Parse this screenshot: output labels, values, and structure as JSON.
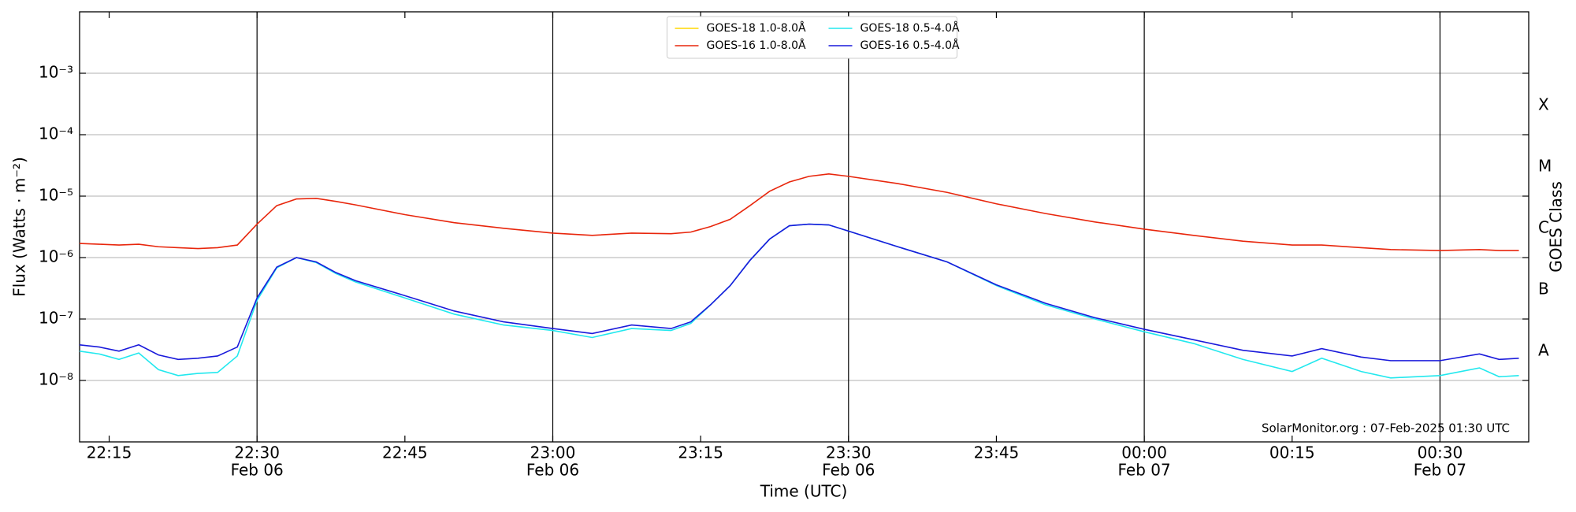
{
  "chart_data": {
    "type": "line",
    "xlabel": "Time (UTC)",
    "ylabel": "Flux (Watts · m⁻²)",
    "y2label": "GOES Class",
    "annotation": "SolarMonitor.org : 07-Feb-2025 01:30 UTC",
    "log_y": true,
    "grid": true,
    "legend": "upper center",
    "xlim": [
      "Feb 06 22:12",
      "Feb 07 00:39"
    ],
    "ylim": [
      1e-09,
      0.01
    ],
    "xticks": [
      {
        "value": "Feb 06 22:15",
        "label": [
          "22:15"
        ]
      },
      {
        "value": "Feb 06 22:30",
        "label": [
          "22:30",
          "Feb 06"
        ]
      },
      {
        "value": "Feb 06 22:45",
        "label": [
          "22:45"
        ]
      },
      {
        "value": "Feb 06 23:00",
        "label": [
          "23:00",
          "Feb 06"
        ]
      },
      {
        "value": "Feb 06 23:15",
        "label": [
          "23:15"
        ]
      },
      {
        "value": "Feb 06 23:30",
        "label": [
          "23:30",
          "Feb 06"
        ]
      },
      {
        "value": "Feb 06 23:45",
        "label": [
          "23:45"
        ]
      },
      {
        "value": "Feb 07 00:00",
        "label": [
          "00:00",
          "Feb 07"
        ]
      },
      {
        "value": "Feb 07 00:15",
        "label": [
          "00:15"
        ]
      },
      {
        "value": "Feb 07 00:30",
        "label": [
          "00:30",
          "Feb 07"
        ]
      }
    ],
    "yticks": [
      {
        "value": 1e-08,
        "label": "10⁻⁸"
      },
      {
        "value": 1e-07,
        "label": "10⁻⁷"
      },
      {
        "value": 1e-06,
        "label": "10⁻⁶"
      },
      {
        "value": 1e-05,
        "label": "10⁻⁵"
      },
      {
        "value": 0.0001,
        "label": "10⁻⁴"
      },
      {
        "value": 0.001,
        "label": "10⁻³"
      }
    ],
    "y2ticks": [
      {
        "value": 3e-08,
        "label": "A"
      },
      {
        "value": 3e-07,
        "label": "B"
      },
      {
        "value": 3e-06,
        "label": "C"
      },
      {
        "value": 3e-05,
        "label": "M"
      },
      {
        "value": 0.0003,
        "label": "X"
      }
    ],
    "x": [
      "Feb 06 22:12",
      "Feb 06 22:14",
      "Feb 06 22:16",
      "Feb 06 22:18",
      "Feb 06 22:20",
      "Feb 06 22:22",
      "Feb 06 22:24",
      "Feb 06 22:26",
      "Feb 06 22:28",
      "Feb 06 22:30",
      "Feb 06 22:32",
      "Feb 06 22:34",
      "Feb 06 22:36",
      "Feb 06 22:38",
      "Feb 06 22:40",
      "Feb 06 22:45",
      "Feb 06 22:50",
      "Feb 06 22:55",
      "Feb 06 23:00",
      "Feb 06 23:04",
      "Feb 06 23:08",
      "Feb 06 23:12",
      "Feb 06 23:14",
      "Feb 06 23:16",
      "Feb 06 23:18",
      "Feb 06 23:20",
      "Feb 06 23:22",
      "Feb 06 23:24",
      "Feb 06 23:26",
      "Feb 06 23:28",
      "Feb 06 23:30",
      "Feb 06 23:35",
      "Feb 06 23:40",
      "Feb 06 23:45",
      "Feb 06 23:50",
      "Feb 06 23:55",
      "Feb 07 00:00",
      "Feb 07 00:05",
      "Feb 07 00:10",
      "Feb 07 00:15",
      "Feb 07 00:18",
      "Feb 07 00:22",
      "Feb 07 00:25",
      "Feb 07 00:30",
      "Feb 07 00:34",
      "Feb 07 00:36",
      "Feb 07 00:38"
    ],
    "series": [
      {
        "name": "GOES-18 1.0-8.0Å",
        "color": "#ffd700",
        "values": [
          null,
          null,
          null,
          null,
          null,
          null,
          null,
          null,
          null,
          null,
          null,
          null,
          null,
          null,
          null,
          null,
          null,
          null,
          null,
          null,
          null,
          null,
          null,
          null,
          null,
          null,
          null,
          null,
          null,
          null,
          null,
          null,
          null,
          null,
          null,
          null,
          null,
          null,
          null,
          null,
          null,
          null,
          null,
          null,
          null,
          null,
          null
        ]
      },
      {
        "name": "GOES-16 1.0-8.0Å",
        "color": "#e8260c",
        "values": [
          1.7e-06,
          1.65e-06,
          1.6e-06,
          1.65e-06,
          1.5e-06,
          1.45e-06,
          1.4e-06,
          1.45e-06,
          1.6e-06,
          3.5e-06,
          7e-06,
          9e-06,
          9.2e-06,
          8.2e-06,
          7.2e-06,
          5e-06,
          3.7e-06,
          3e-06,
          2.5e-06,
          2.3e-06,
          2.5e-06,
          2.45e-06,
          2.6e-06,
          3.2e-06,
          4.2e-06,
          7e-06,
          1.2e-05,
          1.7e-05,
          2.1e-05,
          2.3e-05,
          2.1e-05,
          1.6e-05,
          1.15e-05,
          7.5e-06,
          5.2e-06,
          3.8e-06,
          2.9e-06,
          2.3e-06,
          1.85e-06,
          1.6e-06,
          1.6e-06,
          1.45e-06,
          1.35e-06,
          1.3e-06,
          1.35e-06,
          1.3e-06,
          1.3e-06
        ]
      },
      {
        "name": "GOES-18 0.5-4.0Å",
        "color": "#22e8ee",
        "values": [
          3e-08,
          2.7e-08,
          2.2e-08,
          2.8e-08,
          1.5e-08,
          1.2e-08,
          1.3e-08,
          1.35e-08,
          2.5e-08,
          2e-07,
          6.8e-07,
          1e-06,
          8.3e-07,
          5.5e-07,
          4e-07,
          2.2e-07,
          1.2e-07,
          8e-08,
          6.5e-08,
          5e-08,
          7e-08,
          6.5e-08,
          8.5e-08,
          1.7e-07,
          3.5e-07,
          9e-07,
          2e-06,
          3.3e-06,
          3.5e-06,
          3.4e-06,
          2.7e-06,
          1.5e-06,
          8.5e-07,
          3.5e-07,
          1.7e-07,
          1e-07,
          6.2e-08,
          4e-08,
          2.2e-08,
          1.4e-08,
          2.3e-08,
          1.4e-08,
          1.1e-08,
          1.2e-08,
          1.6e-08,
          1.15e-08,
          1.2e-08
        ]
      },
      {
        "name": "GOES-16 0.5-4.0Å",
        "color": "#1a1adb",
        "values": [
          3.8e-08,
          3.5e-08,
          3e-08,
          3.8e-08,
          2.6e-08,
          2.2e-08,
          2.3e-08,
          2.5e-08,
          3.5e-08,
          2.2e-07,
          7e-07,
          1e-06,
          8.5e-07,
          5.7e-07,
          4.2e-07,
          2.4e-07,
          1.35e-07,
          9e-08,
          7e-08,
          5.8e-08,
          8e-08,
          7e-08,
          9e-08,
          1.7e-07,
          3.5e-07,
          9e-07,
          2e-06,
          3.3e-06,
          3.5e-06,
          3.4e-06,
          2.7e-06,
          1.5e-06,
          8.5e-07,
          3.6e-07,
          1.8e-07,
          1.05e-07,
          6.8e-08,
          4.6e-08,
          3.1e-08,
          2.5e-08,
          3.3e-08,
          2.4e-08,
          2.1e-08,
          2.1e-08,
          2.7e-08,
          2.2e-08,
          2.3e-08
        ]
      }
    ]
  }
}
